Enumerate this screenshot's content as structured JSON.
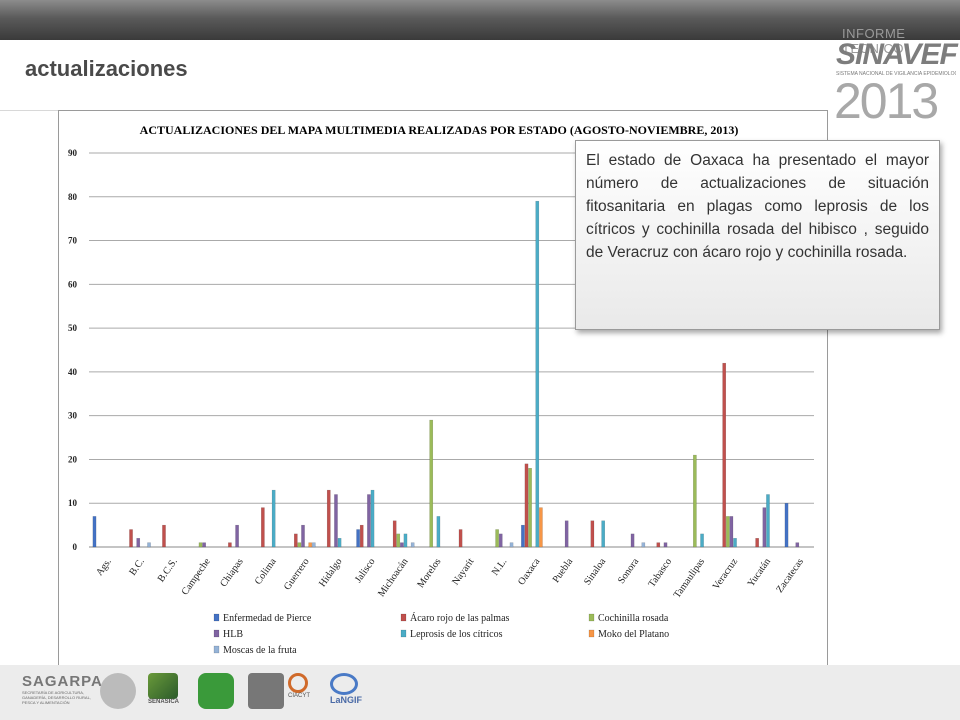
{
  "slide": {
    "title": "actualizaciones"
  },
  "brand": {
    "line1": "INFORME TECNICO",
    "line2": "SINAVEF",
    "line3": "SISTEMA NACIONAL DE VIGILANCIA EPIDEMIOLÓGICA FITOSANITARIA",
    "year": "2013"
  },
  "callout": {
    "text": "El estado de Oaxaca ha presentado el mayor número de actualizaciones de situación fitosanitaria  en plagas como leprosis de los cítricos y cochinilla rosada del hibisco , seguido de Veracruz con ácaro rojo y cochinilla rosada."
  },
  "footer": {
    "sagarpa": "SAGARPA",
    "sagarpa_sub": "SECRETARÍA DE AGRICULTURA, GANADERÍA, DESARROLLO RURAL, PESCA Y ALIMENTACIÓN",
    "senasica": "SENASICA",
    "ciacyt": "CIACYT",
    "langif": "LaNGIF"
  },
  "chart_data": {
    "type": "bar",
    "title": "ACTUALIZACIONES DEL MAPA MULTIMEDIA REALIZADAS POR ESTADO (AGOSTO-NOVIEMBRE, 2013)",
    "xlabel": "",
    "ylabel": "",
    "ylim": [
      0,
      90
    ],
    "yticks": [
      0,
      10,
      20,
      30,
      40,
      50,
      60,
      70,
      80,
      90
    ],
    "grid": true,
    "legend": "bottom",
    "categories": [
      "Ags.",
      "B.C.",
      "B.C.S.",
      "Campeche",
      "Chiapas",
      "Colima",
      "Guerrero",
      "Hidalgo",
      "Jalisco",
      "Michoacán",
      "Morelos",
      "Nayarit",
      "N.L.",
      "Oaxaca",
      "Puebla",
      "Sinaloa",
      "Sonora",
      "Tabasco",
      "Tamaulipas",
      "Veracruz",
      "Yucatán",
      "Zacatecas"
    ],
    "series": [
      {
        "name": "Enfermedad de Pierce",
        "color": "#4472c4",
        "values": [
          7,
          0,
          0,
          0,
          0,
          0,
          0,
          0,
          4,
          0,
          0,
          0,
          0,
          5,
          0,
          0,
          0,
          0,
          0,
          0,
          0,
          10
        ]
      },
      {
        "name": "Ácaro rojo de las palmas",
        "color": "#c0504d",
        "values": [
          0,
          4,
          5,
          0,
          1,
          9,
          3,
          13,
          5,
          6,
          0,
          4,
          0,
          19,
          0,
          6,
          0,
          1,
          0,
          42,
          2,
          0
        ]
      },
      {
        "name": "Cochinilla rosada",
        "color": "#9bbb59",
        "values": [
          0,
          0,
          0,
          1,
          0,
          0,
          1,
          0,
          0,
          3,
          29,
          0,
          4,
          18,
          0,
          0,
          0,
          0,
          21,
          7,
          0,
          0
        ]
      },
      {
        "name": "HLB",
        "color": "#8064a2",
        "values": [
          0,
          2,
          0,
          1,
          5,
          0,
          5,
          12,
          12,
          1,
          0,
          0,
          3,
          0,
          6,
          0,
          3,
          1,
          0,
          7,
          9,
          1
        ]
      },
      {
        "name": "Leprosis de los cítricos",
        "color": "#4bacc6",
        "values": [
          0,
          0,
          0,
          0,
          0,
          13,
          0,
          2,
          13,
          3,
          7,
          0,
          0,
          79,
          0,
          6,
          0,
          0,
          3,
          2,
          12,
          0
        ]
      },
      {
        "name": "Moko del Platano",
        "color": "#f79646",
        "values": [
          0,
          0,
          0,
          0,
          0,
          0,
          1,
          0,
          0,
          0,
          0,
          0,
          0,
          9,
          0,
          0,
          0,
          0,
          0,
          0,
          0,
          0
        ]
      },
      {
        "name": "Moscas de la fruta",
        "color": "#95b3d7",
        "values": [
          0,
          1,
          0,
          0,
          0,
          0,
          1,
          0,
          0,
          1,
          0,
          0,
          1,
          0,
          0,
          0,
          1,
          0,
          0,
          0,
          0,
          0
        ]
      }
    ]
  }
}
